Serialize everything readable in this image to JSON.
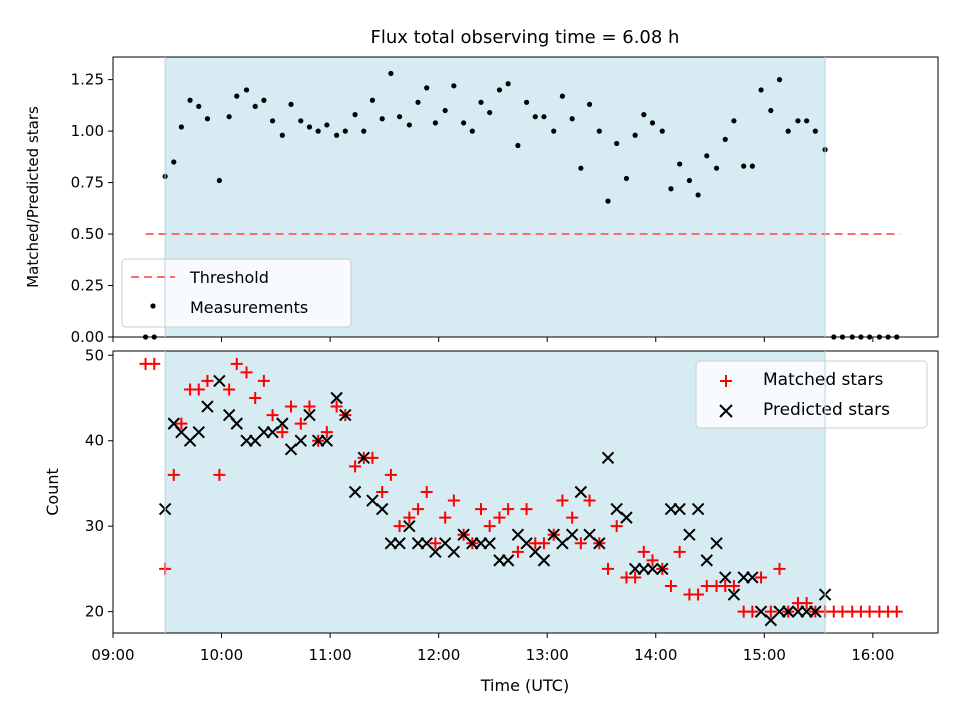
{
  "chart_data": [
    {
      "type": "scatter",
      "title": "Flux total observing time = 6.08 h",
      "ylabel": "Matched/Predicted stars",
      "xlabel": "",
      "xlim": [
        9.0,
        16.6
      ],
      "ylim": [
        0.0,
        1.36
      ],
      "yticks": [
        0.0,
        0.25,
        0.5,
        0.75,
        1.0,
        1.25
      ],
      "ytick_labels": [
        "0.00",
        "0.25",
        "0.50",
        "0.75",
        "1.00",
        "1.25"
      ],
      "observing_window": [
        9.48,
        15.56
      ],
      "threshold": {
        "name": "Threshold",
        "value": 0.5,
        "x_range": [
          9.3,
          16.25
        ],
        "color": "#ff6a6a"
      },
      "legend_position": "lower-left",
      "series": [
        {
          "name": "Measurements",
          "color": "#000000",
          "x": [
            9.3,
            9.38,
            9.48,
            9.56,
            9.63,
            9.71,
            9.79,
            9.87,
            9.98,
            10.07,
            10.14,
            10.23,
            10.31,
            10.39,
            10.47,
            10.56,
            10.64,
            10.73,
            10.81,
            10.89,
            10.97,
            11.06,
            11.14,
            11.23,
            11.31,
            11.39,
            11.48,
            11.56,
            11.64,
            11.73,
            11.81,
            11.89,
            11.97,
            12.06,
            12.14,
            12.23,
            12.31,
            12.39,
            12.47,
            12.56,
            12.64,
            12.73,
            12.81,
            12.89,
            12.97,
            13.06,
            13.14,
            13.23,
            13.31,
            13.39,
            13.48,
            13.56,
            13.64,
            13.73,
            13.81,
            13.89,
            13.97,
            14.06,
            14.14,
            14.22,
            14.31,
            14.39,
            14.47,
            14.56,
            14.64,
            14.72,
            14.81,
            14.89,
            14.97,
            15.06,
            15.14,
            15.22,
            15.31,
            15.39,
            15.47,
            15.56,
            15.64,
            15.72,
            15.81,
            15.89,
            15.97,
            16.06,
            16.14,
            16.22
          ],
          "y": [
            0.0,
            0.0,
            0.78,
            0.85,
            1.02,
            1.15,
            1.12,
            1.06,
            0.76,
            1.07,
            1.17,
            1.2,
            1.12,
            1.15,
            1.05,
            0.98,
            1.13,
            1.05,
            1.02,
            1.0,
            1.03,
            0.98,
            1.0,
            1.08,
            1.0,
            1.15,
            1.06,
            1.28,
            1.07,
            1.03,
            1.14,
            1.21,
            1.04,
            1.1,
            1.22,
            1.04,
            1.0,
            1.14,
            1.09,
            1.2,
            1.23,
            0.93,
            1.14,
            1.07,
            1.07,
            1.0,
            1.17,
            1.06,
            0.82,
            1.13,
            1.0,
            0.66,
            0.94,
            0.77,
            0.98,
            1.08,
            1.04,
            1.0,
            0.72,
            0.84,
            0.76,
            0.69,
            0.88,
            0.82,
            0.96,
            1.05,
            0.83,
            0.83,
            1.2,
            1.1,
            1.25,
            1.0,
            1.05,
            1.05,
            1.0,
            0.91,
            0.0,
            0.0,
            0.0,
            0.0,
            0.0,
            0.0,
            0.0,
            0.0
          ]
        }
      ]
    },
    {
      "type": "scatter",
      "title": "",
      "xlabel": "Time (UTC)",
      "ylabel": "Count",
      "xlim": [
        9.0,
        16.6
      ],
      "ylim": [
        17.5,
        50.5
      ],
      "xticks": [
        9,
        10,
        11,
        12,
        13,
        14,
        15,
        16
      ],
      "xtick_labels": [
        "09:00",
        "10:00",
        "11:00",
        "12:00",
        "13:00",
        "14:00",
        "15:00",
        "16:00"
      ],
      "yticks": [
        20,
        30,
        40,
        50
      ],
      "ytick_labels": [
        "20",
        "30",
        "40",
        "50"
      ],
      "observing_window": [
        9.48,
        15.56
      ],
      "legend_position": "top-right",
      "series": [
        {
          "name": "Matched stars",
          "marker": "plus",
          "color": "#ff0000",
          "x": [
            9.3,
            9.38,
            9.48,
            9.56,
            9.63,
            9.71,
            9.79,
            9.87,
            9.98,
            10.07,
            10.14,
            10.23,
            10.31,
            10.39,
            10.47,
            10.56,
            10.64,
            10.73,
            10.81,
            10.89,
            10.97,
            11.06,
            11.14,
            11.23,
            11.31,
            11.39,
            11.48,
            11.56,
            11.64,
            11.73,
            11.81,
            11.89,
            11.97,
            12.06,
            12.14,
            12.23,
            12.31,
            12.39,
            12.47,
            12.56,
            12.64,
            12.73,
            12.81,
            12.89,
            12.97,
            13.06,
            13.14,
            13.23,
            13.31,
            13.39,
            13.48,
            13.56,
            13.64,
            13.73,
            13.81,
            13.89,
            13.97,
            14.06,
            14.14,
            14.22,
            14.31,
            14.39,
            14.47,
            14.56,
            14.64,
            14.72,
            14.81,
            14.89,
            14.97,
            15.06,
            15.14,
            15.22,
            15.31,
            15.39,
            15.47,
            15.56,
            15.64,
            15.72,
            15.81,
            15.89,
            15.97,
            16.06,
            16.14,
            16.22
          ],
          "y": [
            49,
            49,
            25,
            36,
            42,
            46,
            46,
            47,
            36,
            46,
            49,
            48,
            45,
            47,
            43,
            41,
            44,
            42,
            44,
            40,
            41,
            44,
            43,
            37,
            38,
            38,
            34,
            36,
            30,
            31,
            32,
            34,
            28,
            31,
            33,
            29,
            28,
            32,
            30,
            31,
            32,
            27,
            32,
            28,
            28,
            29,
            33,
            31,
            28,
            33,
            28,
            25,
            30,
            24,
            24,
            27,
            26,
            25,
            23,
            27,
            22,
            22,
            23,
            23,
            23,
            23,
            20,
            20,
            24,
            20,
            25,
            20,
            21,
            21,
            20,
            20,
            20,
            20,
            20,
            20,
            20,
            20,
            20,
            20
          ]
        },
        {
          "name": "Predicted stars",
          "marker": "x",
          "color": "#000000",
          "x": [
            9.48,
            9.56,
            9.63,
            9.71,
            9.79,
            9.87,
            9.98,
            10.07,
            10.14,
            10.23,
            10.31,
            10.39,
            10.47,
            10.56,
            10.64,
            10.73,
            10.81,
            10.89,
            10.97,
            11.06,
            11.14,
            11.23,
            11.31,
            11.39,
            11.48,
            11.56,
            11.64,
            11.73,
            11.81,
            11.89,
            11.97,
            12.06,
            12.14,
            12.23,
            12.31,
            12.39,
            12.47,
            12.56,
            12.64,
            12.73,
            12.81,
            12.89,
            12.97,
            13.06,
            13.14,
            13.23,
            13.31,
            13.39,
            13.48,
            13.56,
            13.64,
            13.73,
            13.81,
            13.89,
            13.97,
            14.06,
            14.14,
            14.22,
            14.31,
            14.39,
            14.47,
            14.56,
            14.64,
            14.72,
            14.81,
            14.89,
            14.97,
            15.06,
            15.14,
            15.22,
            15.31,
            15.39,
            15.47,
            15.56
          ],
          "y": [
            32,
            42,
            41,
            40,
            41,
            44,
            47,
            43,
            42,
            40,
            40,
            41,
            41,
            42,
            39,
            40,
            43,
            40,
            40,
            45,
            43,
            34,
            38,
            33,
            32,
            28,
            28,
            30,
            28,
            28,
            27,
            28,
            27,
            29,
            28,
            28,
            28,
            26,
            26,
            29,
            28,
            27,
            26,
            29,
            28,
            29,
            34,
            29,
            28,
            38,
            32,
            31,
            25,
            25,
            25,
            25,
            32,
            32,
            29,
            32,
            26,
            28,
            24,
            22,
            24,
            24,
            20,
            19,
            20,
            20,
            20,
            20,
            20,
            22
          ]
        }
      ]
    }
  ]
}
